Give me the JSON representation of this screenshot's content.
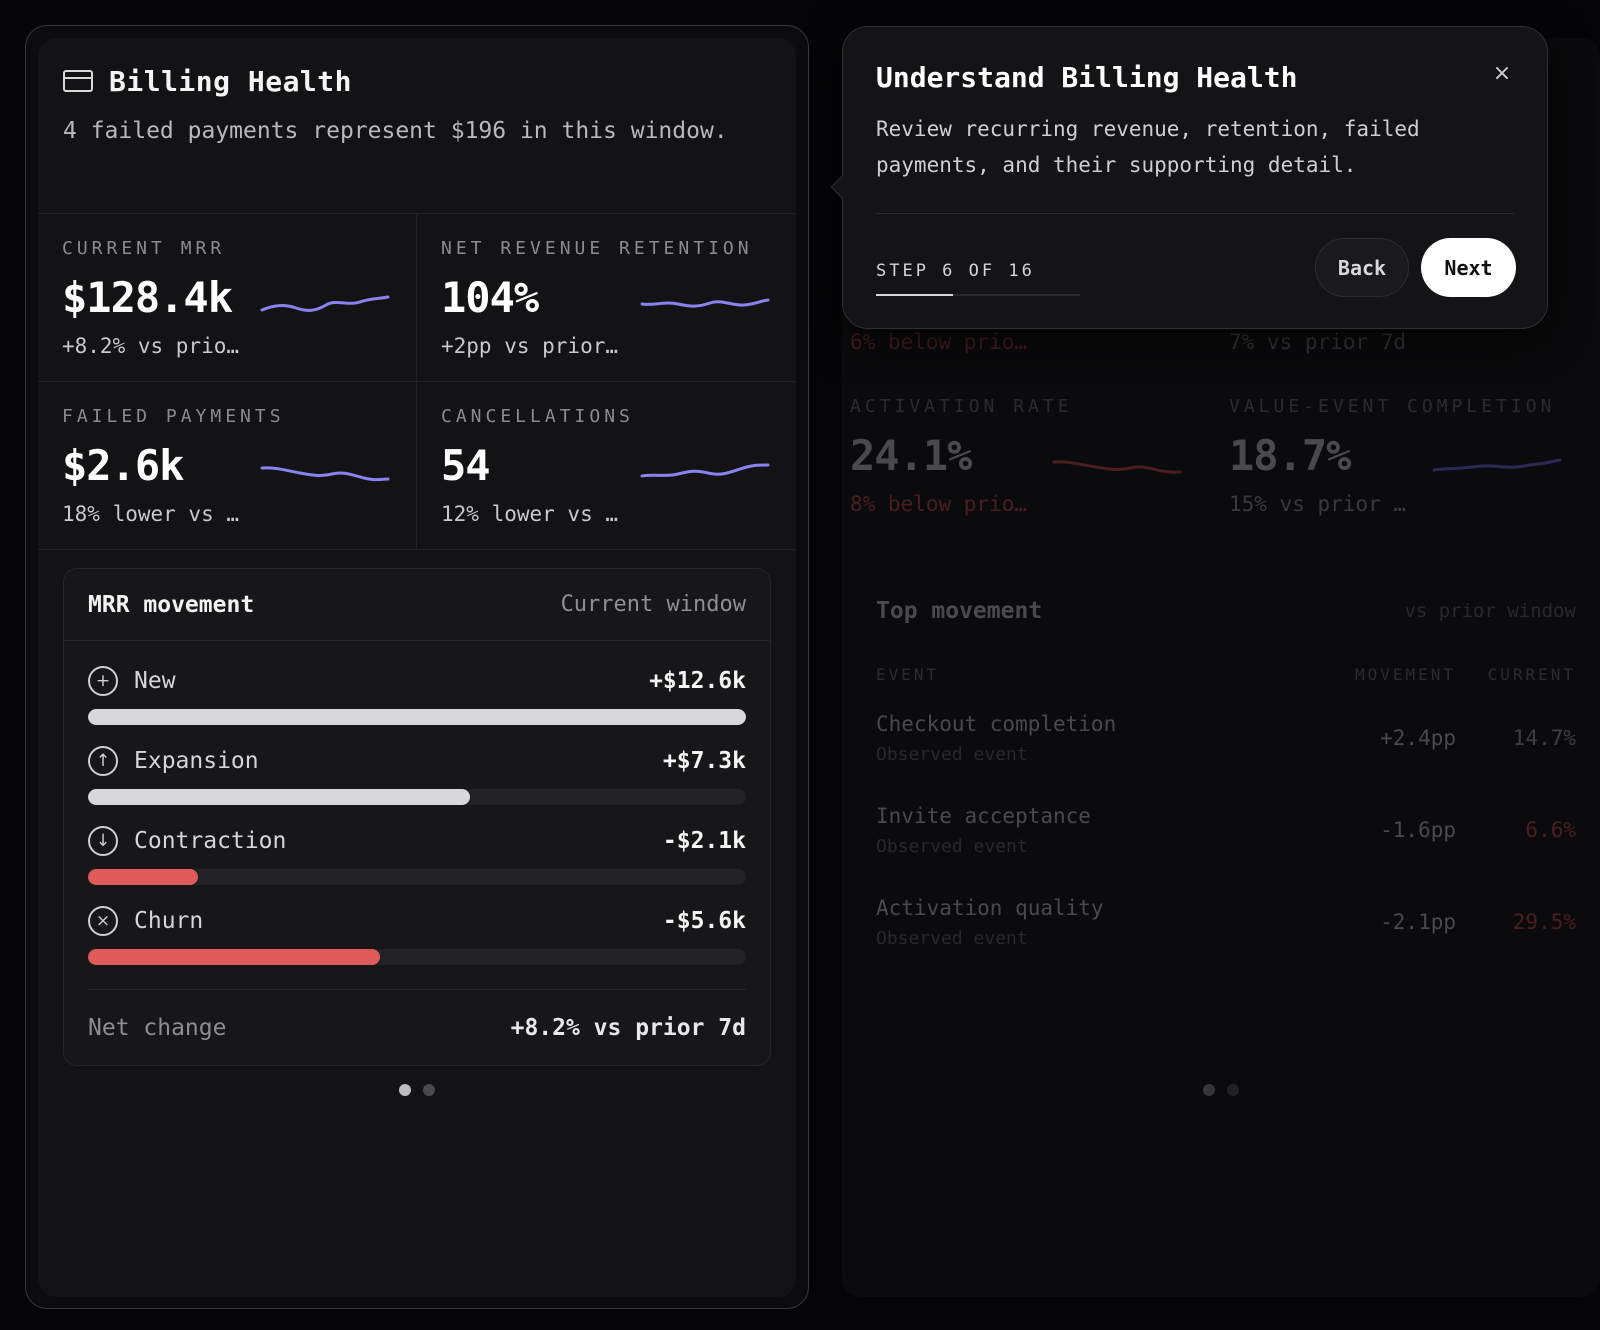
{
  "colors": {
    "sparkline": "#8a82f0",
    "bar_positive": "#d8d8da",
    "bar_negative": "#e05a5a",
    "dim_red": "#4a1e22",
    "dim_purple": "#2c2a55"
  },
  "billing": {
    "icon": "credit-card-icon",
    "title": "Billing Health",
    "subtitle": "4 failed payments represent $196 in this window.",
    "kpis": [
      {
        "label": "CURRENT MRR",
        "value": "$128.4k",
        "delta": "+8.2% vs prio…"
      },
      {
        "label": "NET REVENUE RETENTION",
        "value": "104%",
        "delta": "+2pp vs prior…"
      },
      {
        "label": "FAILED PAYMENTS",
        "value": "$2.6k",
        "delta": "18% lower vs …"
      },
      {
        "label": "CANCELLATIONS",
        "value": "54",
        "delta": "12% lower vs …"
      }
    ],
    "movement": {
      "title": "MRR movement",
      "window": "Current window",
      "rows": [
        {
          "icon": "plus-circle-icon",
          "name": "New",
          "value": "+$12.6k",
          "fraction": 1.0,
          "tone": "positive"
        },
        {
          "icon": "arrow-up-circle-icon",
          "name": "Expansion",
          "value": "+$7.3k",
          "fraction": 0.58,
          "tone": "positive"
        },
        {
          "icon": "arrow-down-circle-icon",
          "name": "Contraction",
          "value": "-$2.1k",
          "fraction": 0.167,
          "tone": "negative"
        },
        {
          "icon": "x-circle-icon",
          "name": "Churn",
          "value": "-$5.6k",
          "fraction": 0.444,
          "tone": "negative"
        }
      ],
      "footer_label": "Net change",
      "footer_value": "+8.2% vs prior 7d"
    },
    "pager": {
      "count": 2,
      "active": 0
    }
  },
  "activation": {
    "kpis": [
      {
        "label": "",
        "value": "",
        "delta": "6% below prio…",
        "tone": "red"
      },
      {
        "label": "",
        "value": "",
        "delta": "7% vs prior 7d",
        "tone": "neutral"
      },
      {
        "label": "ACTIVATION RATE",
        "value": "24.1%",
        "delta": "8% below prio…",
        "tone": "red"
      },
      {
        "label": "VALUE-EVENT COMPLETION",
        "value": "18.7%",
        "delta": "15% vs prior …",
        "tone": "neutral"
      }
    ],
    "table": {
      "title": "Top movement",
      "window": "vs prior window",
      "columns": [
        "EVENT",
        "MOVEMENT",
        "CURRENT"
      ],
      "rows": [
        {
          "event": "Checkout completion",
          "sub": "Observed event",
          "movement": "+2.4pp",
          "current": "14.7%",
          "tone": "neutral"
        },
        {
          "event": "Invite acceptance",
          "sub": "Observed event",
          "movement": "-1.6pp",
          "current": "6.6%",
          "tone": "red"
        },
        {
          "event": "Activation quality",
          "sub": "Observed event",
          "movement": "-2.1pp",
          "current": "29.5%",
          "tone": "red"
        }
      ]
    },
    "pager": {
      "count": 2,
      "active": 0
    }
  },
  "tour": {
    "title": "Understand Billing Health",
    "close_icon": "close-icon",
    "close_glyph": "×",
    "body": "Review recurring revenue, retention, failed payments, and their supporting detail.",
    "step_label": "STEP 6 OF 16",
    "step": 6,
    "total": 16,
    "back_label": "Back",
    "next_label": "Next"
  }
}
